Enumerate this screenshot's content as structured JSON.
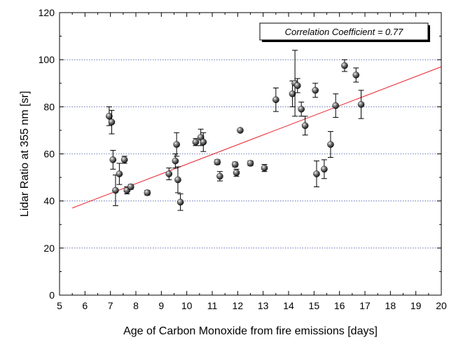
{
  "chart_data": {
    "type": "scatter",
    "title": "",
    "xlabel": "Age of Carbon Monoxide from fire emissions [days]",
    "ylabel": "Lidar Ratio at 355 nm [sr]",
    "xlim": [
      5,
      20
    ],
    "ylim": [
      0,
      120
    ],
    "xticks": [
      5,
      6,
      7,
      8,
      9,
      10,
      11,
      12,
      13,
      14,
      15,
      16,
      17,
      18,
      19,
      20
    ],
    "yticks": [
      0,
      20,
      40,
      60,
      80,
      100,
      120
    ],
    "grid": "horizontal dotted",
    "annotation": "Correlation Coefficient = 0.77",
    "points": [
      {
        "x": 6.95,
        "y": 76,
        "err": 4
      },
      {
        "x": 7.05,
        "y": 73.5,
        "err": 5
      },
      {
        "x": 7.1,
        "y": 57.5,
        "err": 4
      },
      {
        "x": 7.2,
        "y": 44.5,
        "err": 6.5
      },
      {
        "x": 7.35,
        "y": 51.5,
        "err": 4.5
      },
      {
        "x": 7.55,
        "y": 57.5,
        "err": 1.5
      },
      {
        "x": 7.65,
        "y": 44.5,
        "err": 1.5
      },
      {
        "x": 7.8,
        "y": 46,
        "err": 1
      },
      {
        "x": 8.45,
        "y": 43.5,
        "err": 1
      },
      {
        "x": 9.3,
        "y": 51.5,
        "err": 2.5
      },
      {
        "x": 9.55,
        "y": 57,
        "err": 3
      },
      {
        "x": 9.6,
        "y": 64,
        "err": 5
      },
      {
        "x": 9.65,
        "y": 49,
        "err": 5.5
      },
      {
        "x": 9.75,
        "y": 39.5,
        "err": 3.5
      },
      {
        "x": 10.35,
        "y": 65,
        "err": 1.5
      },
      {
        "x": 10.55,
        "y": 67,
        "err": 3.5
      },
      {
        "x": 10.65,
        "y": 65,
        "err": 4
      },
      {
        "x": 11.2,
        "y": 56.5,
        "err": 1
      },
      {
        "x": 11.3,
        "y": 50.5,
        "err": 2
      },
      {
        "x": 11.9,
        "y": 55.5,
        "err": 1
      },
      {
        "x": 11.95,
        "y": 52,
        "err": 1.5
      },
      {
        "x": 12.1,
        "y": 70,
        "err": 0.5
      },
      {
        "x": 12.5,
        "y": 56,
        "err": 1
      },
      {
        "x": 13.05,
        "y": 54,
        "err": 1.5
      },
      {
        "x": 13.5,
        "y": 83,
        "err": 5
      },
      {
        "x": 14.15,
        "y": 85.5,
        "err": 5.5
      },
      {
        "x": 14.25,
        "y": 90,
        "err": 14
      },
      {
        "x": 14.35,
        "y": 89,
        "err": 3
      },
      {
        "x": 14.5,
        "y": 79,
        "err": 3
      },
      {
        "x": 14.65,
        "y": 72,
        "err": 4
      },
      {
        "x": 15.05,
        "y": 87,
        "err": 3
      },
      {
        "x": 15.1,
        "y": 51.5,
        "err": 5.5
      },
      {
        "x": 15.4,
        "y": 53.5,
        "err": 4
      },
      {
        "x": 15.65,
        "y": 64,
        "err": 5.5
      },
      {
        "x": 15.85,
        "y": 80.5,
        "err": 5
      },
      {
        "x": 16.2,
        "y": 97.5,
        "err": 2.5
      },
      {
        "x": 16.65,
        "y": 93.5,
        "err": 3
      },
      {
        "x": 16.85,
        "y": 81,
        "err": 6
      }
    ],
    "fit_line": {
      "x": [
        5.5,
        20
      ],
      "y": [
        37,
        97
      ]
    }
  }
}
